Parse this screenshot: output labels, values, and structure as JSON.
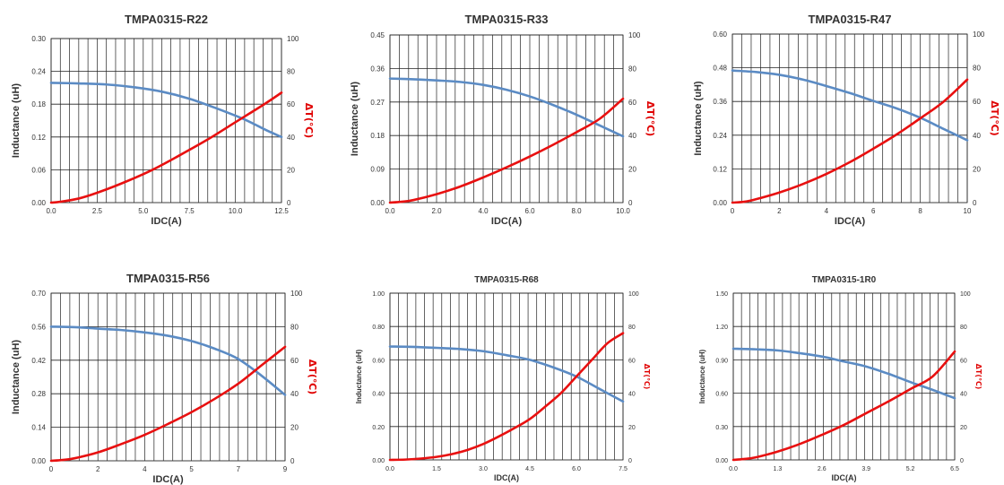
{
  "chart_data": [
    {
      "type": "line",
      "title": "TMPA0315-R22",
      "xlabel": "IDC(A)",
      "ylabel": "Inductance  (uH)",
      "y2label": "ΔT(℃)",
      "x_ticks": [
        "0.0",
        "2.5",
        "5.0",
        "7.5",
        "10.0",
        "12.5"
      ],
      "y_ticks": [
        "0.00",
        "0.06",
        "0.12",
        "0.18",
        "0.24",
        "0.30"
      ],
      "y2_ticks": [
        "0",
        "20",
        "40",
        "60",
        "80",
        "100"
      ],
      "xlim": [
        0,
        12.5
      ],
      "ylim": [
        0,
        0.3
      ],
      "y2lim": [
        0,
        100
      ],
      "grid": true,
      "colors": {
        "inductance": "#5b8bc4",
        "temperature": "#e81010"
      },
      "series": [
        {
          "axis": "left",
          "x": [
            0,
            1.5,
            3,
            4.5,
            6,
            7.5,
            9,
            10.5,
            11.7,
            12.5
          ],
          "values": [
            0.219,
            0.218,
            0.216,
            0.211,
            0.203,
            0.19,
            0.172,
            0.152,
            0.132,
            0.12
          ]
        },
        {
          "axis": "right",
          "x": [
            0,
            0.5,
            1.5,
            2.5,
            4,
            5.5,
            7,
            8.5,
            10,
            11.5,
            12.5
          ],
          "values": [
            0,
            0.5,
            2.5,
            6,
            12.5,
            20,
            29,
            38.5,
            49,
            59.5,
            67
          ]
        }
      ]
    },
    {
      "type": "line",
      "title": "TMPA0315-R33",
      "xlabel": "IDC(A)",
      "ylabel": "Inductance  (uH)",
      "y2label": "ΔT(℃)",
      "x_ticks": [
        "0.0",
        "2.0",
        "4.0",
        "6.0",
        "8.0",
        "10.0"
      ],
      "y_ticks": [
        "0.00",
        "0.09",
        "0.18",
        "0.27",
        "0.36",
        "0.45"
      ],
      "y2_ticks": [
        "0",
        "20",
        "40",
        "60",
        "80",
        "100"
      ],
      "xlim": [
        0,
        10
      ],
      "ylim": [
        0,
        0.45
      ],
      "y2lim": [
        0,
        100
      ],
      "grid": true,
      "colors": {
        "inductance": "#5b8bc4",
        "temperature": "#e81010"
      },
      "series": [
        {
          "axis": "left",
          "x": [
            0,
            1,
            2,
            3,
            4,
            5,
            6,
            7,
            8,
            9,
            10
          ],
          "values": [
            0.333,
            0.331,
            0.328,
            0.324,
            0.316,
            0.303,
            0.285,
            0.262,
            0.236,
            0.207,
            0.178
          ]
        },
        {
          "axis": "right",
          "x": [
            0,
            0.5,
            1,
            2,
            3,
            4,
            5,
            6,
            7,
            8,
            9,
            10
          ],
          "values": [
            0,
            0.5,
            1.5,
            5,
            9.5,
            15,
            21,
            27.5,
            34.5,
            42,
            50,
            62
          ]
        }
      ]
    },
    {
      "type": "line",
      "title": "TMPA0315-R47",
      "xlabel": "IDC(A)",
      "ylabel": "Inductance  (uH)",
      "y2label": "ΔT(℃)",
      "x_ticks": [
        "0",
        "2",
        "4",
        "6",
        "8",
        "10"
      ],
      "y_ticks": [
        "0.00",
        "0.12",
        "0.24",
        "0.36",
        "0.48",
        "0.60"
      ],
      "y2_ticks": [
        "0",
        "20",
        "40",
        "60",
        "80",
        "100"
      ],
      "xlim": [
        0,
        10
      ],
      "ylim": [
        0,
        0.6
      ],
      "y2lim": [
        0,
        100
      ],
      "grid": true,
      "colors": {
        "inductance": "#5b8bc4",
        "temperature": "#e81010"
      },
      "series": [
        {
          "axis": "left",
          "x": [
            0,
            1,
            2,
            3,
            4,
            5,
            6,
            7,
            8,
            9,
            10
          ],
          "values": [
            0.47,
            0.465,
            0.455,
            0.438,
            0.415,
            0.39,
            0.362,
            0.335,
            0.302,
            0.262,
            0.222
          ]
        },
        {
          "axis": "right",
          "x": [
            0,
            0.5,
            1,
            2,
            3,
            4,
            5,
            6,
            7,
            8,
            9,
            10
          ],
          "values": [
            0,
            0.5,
            2,
            6,
            11,
            17,
            24,
            32,
            40.5,
            50,
            60,
            73
          ]
        }
      ]
    },
    {
      "type": "line",
      "title": "TMPA0315-R56",
      "xlabel": "IDC(A)",
      "ylabel": "Inductance  (uH)",
      "y2label": "ΔT(℃)",
      "x_ticks": [
        "0",
        "2",
        "4",
        "5",
        "7",
        "9"
      ],
      "y_ticks": [
        "0.00",
        "0.14",
        "0.28",
        "0.42",
        "0.56",
        "0.70"
      ],
      "y2_ticks": [
        "0",
        "20",
        "40",
        "60",
        "80",
        "100"
      ],
      "xlim": [
        0,
        10
      ],
      "ylim": [
        0,
        0.7
      ],
      "y2lim": [
        0,
        100
      ],
      "grid": true,
      "colors": {
        "inductance": "#5b8bc4",
        "temperature": "#e81010"
      },
      "series": [
        {
          "axis": "left",
          "x": [
            0,
            1,
            2,
            3,
            4,
            5,
            6,
            7,
            8,
            9,
            10
          ],
          "values": [
            0.56,
            0.558,
            0.552,
            0.546,
            0.536,
            0.522,
            0.5,
            0.468,
            0.425,
            0.355,
            0.275
          ]
        },
        {
          "axis": "right",
          "x": [
            0,
            0.5,
            1,
            2,
            3,
            4,
            5,
            6,
            7,
            8,
            9,
            10
          ],
          "values": [
            0,
            0.5,
            1.5,
            5,
            10,
            15.5,
            22,
            29,
            37,
            46,
            57,
            68
          ]
        }
      ]
    },
    {
      "type": "line",
      "title": "TMPA0315-R68",
      "xlabel": "IDC(A)",
      "ylabel": "Inductance (uH)",
      "y2label": "ΔT(℃)",
      "x_ticks": [
        "0.0",
        "1.5",
        "3.0",
        "4.5",
        "6.0",
        "7.5"
      ],
      "y_ticks": [
        "0.00",
        "0.20",
        "0.40",
        "0.60",
        "0.80",
        "1.00"
      ],
      "y2_ticks": [
        "0",
        "20",
        "40",
        "60",
        "80",
        "100"
      ],
      "xlim": [
        0,
        7.5
      ],
      "ylim": [
        0,
        1.0
      ],
      "y2lim": [
        0,
        100
      ],
      "grid": true,
      "colors": {
        "inductance": "#5b8bc4",
        "temperature": "#e81010"
      },
      "series": [
        {
          "axis": "left",
          "x": [
            0,
            0.75,
            1.5,
            2.25,
            3,
            3.75,
            4.5,
            5.25,
            6,
            6.75,
            7.5
          ],
          "values": [
            0.68,
            0.678,
            0.672,
            0.665,
            0.652,
            0.628,
            0.6,
            0.555,
            0.5,
            0.425,
            0.35
          ]
        },
        {
          "axis": "right",
          "x": [
            0,
            0.5,
            1,
            1.5,
            2,
            2.5,
            3,
            3.5,
            4,
            4.5,
            5,
            5.5,
            6,
            6.5,
            7,
            7.5
          ],
          "values": [
            0,
            0.2,
            0.8,
            1.8,
            3.5,
            6,
            9.5,
            14,
            19,
            24.5,
            32,
            40,
            50,
            60,
            70,
            76
          ]
        }
      ]
    },
    {
      "type": "line",
      "title": "TMPA0315-1R0",
      "xlabel": "IDC(A)",
      "ylabel": "Inductance (uH)",
      "y2label": "ΔT(℃)",
      "x_ticks": [
        "0.0",
        "1.3",
        "2.6",
        "3.9",
        "5.2",
        "6.5"
      ],
      "y_ticks": [
        "0.00",
        "0.30",
        "0.60",
        "0.90",
        "1.20",
        "1.50"
      ],
      "y2_ticks": [
        "0",
        "20",
        "40",
        "60",
        "80",
        "100"
      ],
      "xlim": [
        0,
        6.5
      ],
      "ylim": [
        0,
        1.5
      ],
      "y2lim": [
        0,
        100
      ],
      "grid": true,
      "colors": {
        "inductance": "#5b8bc4",
        "temperature": "#e81010"
      },
      "series": [
        {
          "axis": "left",
          "x": [
            0,
            0.65,
            1.3,
            1.95,
            2.6,
            3.25,
            3.9,
            4.55,
            5.2,
            5.85,
            6.5
          ],
          "values": [
            1.0,
            0.995,
            0.985,
            0.96,
            0.93,
            0.885,
            0.84,
            0.775,
            0.7,
            0.63,
            0.555
          ]
        },
        {
          "axis": "right",
          "x": [
            0,
            0.3,
            0.65,
            1.3,
            1.95,
            2.6,
            3.25,
            3.9,
            4.55,
            5.2,
            5.85,
            6.5
          ],
          "values": [
            0,
            0.5,
            1.5,
            5,
            9.5,
            15,
            21,
            28,
            35,
            42.5,
            50,
            65
          ]
        }
      ]
    }
  ]
}
